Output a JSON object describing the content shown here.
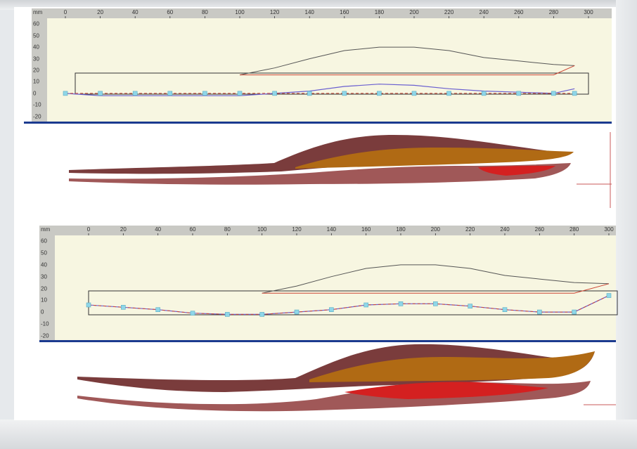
{
  "ruler": {
    "unit_label": "mm",
    "x_ticks": [
      "0",
      "20",
      "40",
      "60",
      "80",
      "100",
      "120",
      "140",
      "160",
      "180",
      "200",
      "220",
      "240",
      "260",
      "280",
      "300"
    ],
    "y_ticks": [
      "60",
      "50",
      "40",
      "30",
      "20",
      "10",
      "0",
      "-10",
      "-20"
    ]
  },
  "colors": {
    "panel_bg": "#f7f6e1",
    "separator": "#1b3a8f",
    "sole_line": "#cc4433",
    "profile_line": "#555555",
    "outline_line": "#333333",
    "insole_line": "#6a5fd0",
    "point_marker": "#8fd6e8",
    "surface_dark": "#7a3c3c",
    "surface_mid": "#a05858",
    "surface_orange": "#b06a14",
    "surface_red": "#d42020"
  },
  "chart_data": [
    {
      "type": "line",
      "xlabel": "mm",
      "xlim": [
        0,
        300
      ],
      "ylim": [
        -25,
        65
      ],
      "series": [
        {
          "x": [
            100,
            120,
            140,
            160,
            180,
            200,
            220,
            240,
            260,
            280,
            292
          ],
          "values": [
            16,
            22,
            30,
            37,
            40,
            40,
            37,
            31,
            28,
            25,
            24
          ]
        },
        {
          "x": [
            100,
            160,
            200,
            240,
            280,
            292
          ],
          "values": [
            16,
            16,
            16,
            16,
            16,
            24
          ]
        },
        {
          "x": [
            0,
            20,
            40,
            60,
            80,
            100,
            120,
            140,
            160,
            180,
            200,
            220,
            240,
            260,
            280,
            292
          ],
          "values": [
            0,
            -2,
            -2,
            -2,
            -2,
            -2,
            0,
            2,
            6,
            8,
            7,
            4,
            2,
            1,
            0,
            4
          ]
        },
        {
          "x": [
            0,
            20,
            40,
            60,
            80,
            100,
            120,
            140,
            160,
            180,
            200,
            220,
            240,
            260,
            280,
            292
          ],
          "values": [
            0,
            0,
            0,
            0,
            0,
            0,
            0,
            0,
            0,
            0,
            0,
            0,
            0,
            0,
            0,
            0
          ]
        }
      ]
    },
    {
      "type": "line",
      "xlabel": "mm",
      "xlim": [
        0,
        300
      ],
      "ylim": [
        -25,
        65
      ],
      "series": [
        {
          "x": [
            100,
            120,
            140,
            160,
            180,
            200,
            220,
            240,
            260,
            280,
            300
          ],
          "values": [
            16,
            22,
            30,
            37,
            40,
            40,
            37,
            31,
            28,
            25,
            24
          ]
        },
        {
          "x": [
            100,
            160,
            200,
            240,
            280,
            300
          ],
          "values": [
            16,
            16,
            16,
            16,
            16,
            24
          ]
        },
        {
          "x": [
            0,
            20,
            40,
            60,
            80,
            100,
            120,
            140,
            160,
            180,
            200,
            220,
            240,
            260,
            280,
            300
          ],
          "values": [
            6,
            4,
            2,
            -1,
            -2,
            -2,
            0,
            2,
            6,
            7,
            7,
            5,
            2,
            0,
            0,
            14
          ]
        },
        {
          "x": [
            0,
            20,
            40,
            60,
            80,
            100,
            120,
            140,
            160,
            180,
            200,
            220,
            240,
            260,
            280,
            300
          ],
          "values": [
            6,
            4,
            2,
            -1,
            -2,
            -2,
            0,
            2,
            6,
            7,
            7,
            5,
            2,
            0,
            0,
            14
          ]
        }
      ]
    }
  ]
}
